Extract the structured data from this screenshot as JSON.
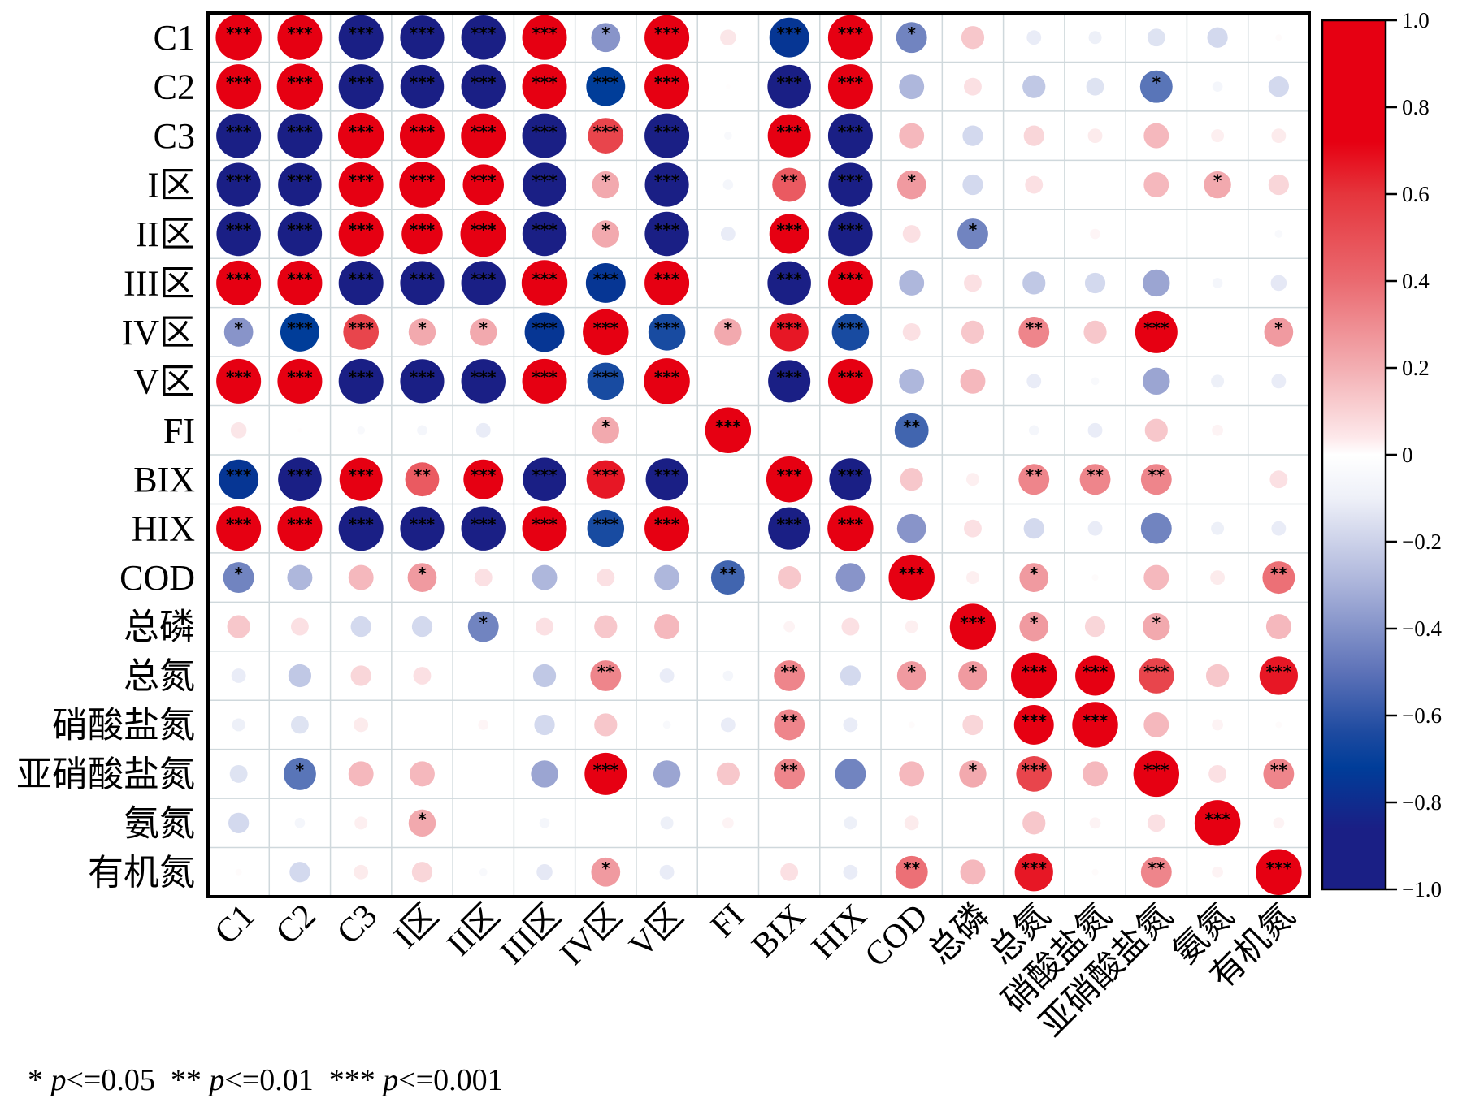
{
  "chart_data": {
    "type": "heatmap",
    "subtype": "correlation-circle",
    "title": "",
    "labels": [
      "C1",
      "C2",
      "C3",
      "I区",
      "II区",
      "III区",
      "IV区",
      "V区",
      "FI",
      "BIX",
      "HIX",
      "COD",
      "总磷",
      "总氮",
      "硝酸盐氮",
      "亚硝酸盐氮",
      "氨氮",
      "有机氮"
    ],
    "matrix": [
      [
        1,
        0.95,
        -0.95,
        -0.92,
        -0.93,
        0.95,
        -0.4,
        0.95,
        0.12,
        -0.75,
        0.95,
        -0.45,
        0.25,
        -0.1,
        -0.08,
        -0.15,
        -0.2,
        0.02
      ],
      [
        0.95,
        1,
        -0.95,
        -0.9,
        -0.93,
        0.95,
        -0.72,
        0.95,
        0.01,
        -0.9,
        0.95,
        -0.3,
        0.15,
        -0.25,
        -0.15,
        -0.5,
        -0.05,
        -0.2
      ],
      [
        -0.95,
        -0.95,
        1,
        0.95,
        0.95,
        -0.95,
        0.6,
        -0.95,
        -0.03,
        0.88,
        -0.95,
        0.3,
        -0.2,
        0.2,
        0.1,
        0.3,
        0.08,
        0.1
      ],
      [
        -0.92,
        -0.9,
        0.95,
        1,
        0.8,
        -0.92,
        0.35,
        -0.92,
        -0.05,
        0.55,
        -0.92,
        0.4,
        -0.2,
        0.15,
        0,
        0.3,
        0.35,
        0.2
      ],
      [
        -0.93,
        -0.93,
        0.95,
        0.8,
        1,
        -0.93,
        0.35,
        -0.93,
        -0.1,
        0.75,
        -0.93,
        0.15,
        -0.45,
        0,
        0.05,
        0,
        0,
        -0.03
      ],
      [
        0.95,
        0.95,
        -0.95,
        -0.92,
        -0.93,
        1,
        -0.75,
        0.95,
        0,
        -0.9,
        0.95,
        -0.3,
        0.15,
        -0.25,
        -0.2,
        -0.35,
        -0.05,
        -0.12
      ],
      [
        -0.4,
        -0.72,
        0.6,
        0.35,
        0.35,
        -0.75,
        1,
        -0.65,
        0.35,
        0.7,
        -0.65,
        0.15,
        0.25,
        0.45,
        0.25,
        0.85,
        0,
        0.4
      ],
      [
        0.95,
        0.95,
        -0.95,
        -0.92,
        -0.93,
        0.95,
        -0.65,
        1,
        0,
        -0.85,
        0.95,
        -0.3,
        0.3,
        -0.1,
        -0.03,
        -0.35,
        -0.08,
        -0.1
      ],
      [
        0.12,
        0.01,
        -0.03,
        -0.05,
        -0.1,
        0,
        0.35,
        0,
        1,
        0,
        0,
        -0.55,
        0,
        -0.05,
        -0.1,
        0.25,
        0.06,
        0
      ],
      [
        -0.75,
        -0.9,
        0.88,
        0.55,
        0.75,
        -0.9,
        0.7,
        -0.85,
        0,
        1,
        -0.85,
        0.25,
        0.08,
        0.45,
        0.45,
        0.45,
        0,
        0.15
      ],
      [
        0.95,
        0.95,
        -0.95,
        -0.92,
        -0.93,
        0.95,
        -0.65,
        0.95,
        0,
        -0.85,
        1,
        -0.4,
        0.15,
        -0.2,
        -0.1,
        -0.45,
        -0.08,
        -0.1
      ],
      [
        -0.45,
        -0.3,
        0.3,
        0.4,
        0.15,
        -0.3,
        0.15,
        -0.3,
        -0.55,
        0.25,
        -0.4,
        1,
        0.08,
        0.4,
        0.02,
        0.3,
        0.1,
        0.5
      ],
      [
        0.25,
        0.15,
        -0.2,
        -0.2,
        -0.45,
        0.15,
        0.25,
        0.3,
        0,
        0.06,
        0.15,
        0.08,
        1,
        0.4,
        0.2,
        0.35,
        0,
        0.3
      ],
      [
        -0.1,
        -0.25,
        0.2,
        0.15,
        0,
        -0.25,
        0.45,
        -0.1,
        -0.05,
        0.45,
        -0.2,
        0.4,
        0.4,
        1,
        0.75,
        0.6,
        0.25,
        0.7
      ],
      [
        -0.08,
        -0.15,
        0.1,
        0,
        0.05,
        -0.2,
        0.25,
        -0.03,
        -0.1,
        0.45,
        -0.1,
        0.02,
        0.2,
        0.75,
        1,
        0.3,
        0.06,
        0.02
      ],
      [
        -0.15,
        -0.5,
        0.3,
        0.3,
        0,
        -0.35,
        0.85,
        -0.35,
        0.25,
        0.45,
        -0.45,
        0.3,
        0.35,
        0.6,
        0.3,
        1,
        0.15,
        0.45
      ],
      [
        -0.2,
        -0.05,
        0.08,
        0.35,
        0,
        -0.05,
        0,
        -0.08,
        0.06,
        0,
        -0.08,
        0.1,
        0,
        0.25,
        0.06,
        0.15,
        1,
        0.06
      ],
      [
        0.02,
        -0.2,
        0.1,
        0.2,
        -0.03,
        -0.12,
        0.4,
        -0.1,
        0,
        0.15,
        -0.1,
        0.5,
        0.3,
        0.7,
        0.02,
        0.45,
        0.06,
        1
      ]
    ],
    "significance": [
      [
        "***",
        "***",
        "***",
        "***",
        "***",
        "***",
        "*",
        "***",
        "",
        "***",
        "***",
        "*",
        "",
        "",
        "",
        "",
        "",
        ""
      ],
      [
        "***",
        "***",
        "***",
        "***",
        "***",
        "***",
        "***",
        "***",
        "",
        "***",
        "***",
        "",
        "",
        "",
        "",
        "*",
        "",
        ""
      ],
      [
        "***",
        "***",
        "***",
        "***",
        "***",
        "***",
        "***",
        "***",
        "",
        "***",
        "***",
        "",
        "",
        "",
        "",
        "",
        "",
        ""
      ],
      [
        "***",
        "***",
        "***",
        "***",
        "***",
        "***",
        "*",
        "***",
        "",
        "**",
        "***",
        "*",
        "",
        "",
        "",
        "",
        "*",
        ""
      ],
      [
        "***",
        "***",
        "***",
        "***",
        "***",
        "***",
        "*",
        "***",
        "",
        "***",
        "***",
        "",
        "*",
        "",
        "",
        "",
        "",
        ""
      ],
      [
        "***",
        "***",
        "***",
        "***",
        "***",
        "***",
        "***",
        "***",
        "",
        "***",
        "***",
        "",
        "",
        "",
        "",
        "",
        "",
        ""
      ],
      [
        "*",
        "***",
        "***",
        "*",
        "*",
        "***",
        "***",
        "***",
        "*",
        "***",
        "***",
        "",
        "",
        "**",
        "",
        "***",
        "",
        "*"
      ],
      [
        "***",
        "***",
        "***",
        "***",
        "***",
        "***",
        "***",
        "***",
        "",
        "***",
        "***",
        "",
        "",
        "",
        "",
        "",
        "",
        ""
      ],
      [
        "",
        "",
        "",
        "",
        "",
        "",
        "*",
        "",
        "***",
        "",
        "",
        "**",
        "",
        "",
        "",
        "",
        "",
        ""
      ],
      [
        "***",
        "***",
        "***",
        "**",
        "***",
        "***",
        "***",
        "***",
        "",
        "***",
        "***",
        "",
        "",
        "**",
        "**",
        "**",
        "",
        ""
      ],
      [
        "***",
        "***",
        "***",
        "***",
        "***",
        "***",
        "***",
        "***",
        "",
        "***",
        "***",
        "",
        "",
        "",
        "",
        "",
        "",
        ""
      ],
      [
        "*",
        "",
        "",
        "*",
        "",
        "",
        "",
        "",
        "**",
        "",
        "",
        "***",
        "",
        "*",
        "",
        "",
        "",
        "**"
      ],
      [
        "",
        "",
        "",
        "",
        "*",
        "",
        "",
        "",
        "",
        "",
        "",
        "",
        "***",
        "*",
        "",
        "*",
        "",
        ""
      ],
      [
        "",
        "",
        "",
        "",
        "",
        "",
        "**",
        "",
        "",
        "**",
        "",
        "*",
        "*",
        "***",
        "***",
        "***",
        "",
        "***"
      ],
      [
        "",
        "",
        "",
        "",
        "",
        "",
        "",
        "",
        "",
        "**",
        "",
        "",
        "",
        "***",
        "***",
        "",
        "",
        ""
      ],
      [
        "",
        "*",
        "",
        "",
        "",
        "",
        "***",
        "",
        "",
        "**",
        "",
        "",
        "*",
        "***",
        "",
        "***",
        "",
        "**"
      ],
      [
        "",
        "",
        "",
        "*",
        "",
        "",
        "",
        "",
        "",
        "",
        "",
        "",
        "",
        "",
        "",
        "",
        "***",
        ""
      ],
      [
        "",
        "",
        "",
        "",
        "",
        "",
        "*",
        "",
        "",
        "",
        "",
        "**",
        "",
        "***",
        "",
        "**",
        "",
        "***"
      ]
    ],
    "colorbar": {
      "range": [
        -1.0,
        1.0
      ],
      "ticks": [
        "1.0",
        "0.8",
        "0.6",
        "0.4",
        "0.2",
        "0",
        "−0.2",
        "−0.4",
        "−0.6",
        "−0.8",
        "−1.0"
      ],
      "tick_values": [
        1.0,
        0.8,
        0.6,
        0.4,
        0.2,
        0,
        -0.2,
        -0.4,
        -0.6,
        -0.8,
        -1.0
      ],
      "colors": {
        "negative": "#1a1f85",
        "mid_negative": "#003d99",
        "zero": "#ffffff",
        "positive": "#e60012"
      }
    },
    "xlabel": "",
    "ylabel": "",
    "grid": true,
    "legend_position": "right"
  },
  "legend_note": {
    "items": [
      {
        "stars": "*",
        "p": "p",
        "rel": "<=0.05"
      },
      {
        "stars": "**",
        "p": "p",
        "rel": "<=0.01"
      },
      {
        "stars": "***",
        "p": "p",
        "rel": "<=0.001"
      }
    ]
  }
}
